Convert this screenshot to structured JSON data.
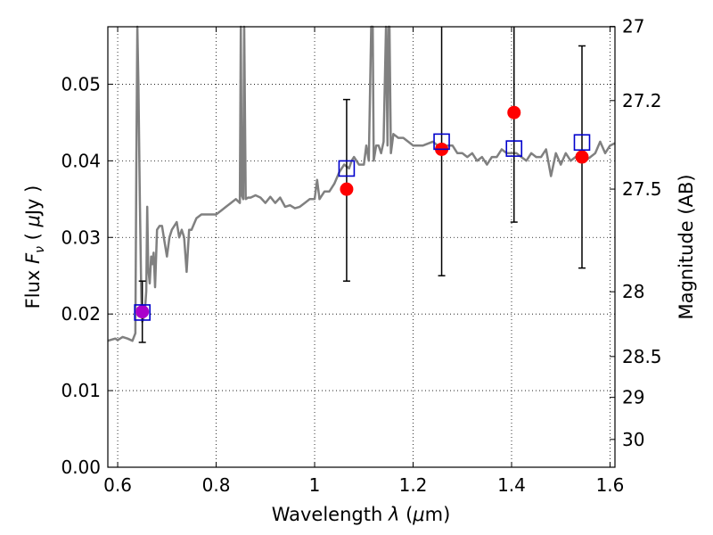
{
  "chart_data": {
    "type": "line",
    "xlabel": "Wavelength  λ (μm)",
    "ylabel": "Flux  F_ν  ( μJy )",
    "ylabel_parts": {
      "pre": "Flux  ",
      "var": "F",
      "sub": "ν",
      "mid": "  ( ",
      "mu": "μ",
      "post": "Jy )"
    },
    "xlabel_parts": {
      "pre": "Wavelength  ",
      "lam": "λ",
      "mid": " (",
      "mu": "μ",
      "post": "m)"
    },
    "y2label": "Magnitude (AB)",
    "xlim": [
      0.58,
      1.61
    ],
    "ylim": [
      0.0,
      0.0575
    ],
    "grid": true,
    "x_ticks": [
      {
        "value": 0.6,
        "label": "0.6"
      },
      {
        "value": 0.8,
        "label": "0.8"
      },
      {
        "value": 1.0,
        "label": "1"
      },
      {
        "value": 1.2,
        "label": "1.2"
      },
      {
        "value": 1.4,
        "label": "1.4"
      },
      {
        "value": 1.6,
        "label": "1.6"
      }
    ],
    "y_ticks": [
      {
        "value": 0.0,
        "label": "0.00"
      },
      {
        "value": 0.01,
        "label": "0.01"
      },
      {
        "value": 0.02,
        "label": "0.02"
      },
      {
        "value": 0.03,
        "label": "0.03"
      },
      {
        "value": 0.04,
        "label": "0.04"
      },
      {
        "value": 0.05,
        "label": "0.05"
      }
    ],
    "mag_ticks": [
      {
        "value": 27,
        "label": "27"
      },
      {
        "value": 27.2,
        "label": "27.2"
      },
      {
        "value": 27.5,
        "label": "27.5"
      },
      {
        "value": 28,
        "label": "28"
      },
      {
        "value": 28.5,
        "label": "28.5"
      },
      {
        "value": 29,
        "label": "29"
      },
      {
        "value": 30,
        "label": "30"
      }
    ],
    "colors": {
      "model": "#808080",
      "observed": "#ff0000",
      "observed_blended": "#aa00cc",
      "synthetic": "#0000cc",
      "errorbar": "#000000",
      "grid": "#000000"
    },
    "model_spectrum": {
      "x": [
        0.58,
        0.595,
        0.6,
        0.61,
        0.62,
        0.63,
        0.636,
        0.638,
        0.64,
        0.642,
        0.645,
        0.648,
        0.65,
        0.655,
        0.658,
        0.66,
        0.662,
        0.665,
        0.668,
        0.67,
        0.673,
        0.676,
        0.68,
        0.685,
        0.69,
        0.695,
        0.7,
        0.705,
        0.71,
        0.72,
        0.725,
        0.73,
        0.735,
        0.74,
        0.745,
        0.75,
        0.76,
        0.77,
        0.78,
        0.79,
        0.8,
        0.81,
        0.82,
        0.83,
        0.84,
        0.848,
        0.85,
        0.852,
        0.855,
        0.857,
        0.86,
        0.865,
        0.87,
        0.88,
        0.89,
        0.9,
        0.91,
        0.92,
        0.93,
        0.94,
        0.95,
        0.96,
        0.97,
        0.98,
        0.99,
        1.0,
        1.005,
        1.01,
        1.02,
        1.03,
        1.04,
        1.05,
        1.06,
        1.07,
        1.075,
        1.08,
        1.09,
        1.1,
        1.105,
        1.11,
        1.115,
        1.118,
        1.12,
        1.125,
        1.13,
        1.135,
        1.14,
        1.145,
        1.148,
        1.15,
        1.152,
        1.155,
        1.16,
        1.17,
        1.18,
        1.19,
        1.2,
        1.22,
        1.24,
        1.25,
        1.26,
        1.27,
        1.28,
        1.29,
        1.3,
        1.31,
        1.32,
        1.33,
        1.34,
        1.35,
        1.36,
        1.37,
        1.38,
        1.39,
        1.4,
        1.41,
        1.42,
        1.43,
        1.44,
        1.45,
        1.46,
        1.47,
        1.48,
        1.49,
        1.5,
        1.51,
        1.52,
        1.53,
        1.54,
        1.55,
        1.56,
        1.57,
        1.58,
        1.59,
        1.6,
        1.61
      ],
      "y": [
        0.0165,
        0.0168,
        0.0166,
        0.017,
        0.0168,
        0.0165,
        0.0175,
        0.04,
        0.058,
        0.05,
        0.035,
        0.022,
        0.019,
        0.02,
        0.023,
        0.034,
        0.026,
        0.024,
        0.0275,
        0.0265,
        0.028,
        0.0235,
        0.031,
        0.0315,
        0.0315,
        0.0295,
        0.0275,
        0.03,
        0.031,
        0.032,
        0.03,
        0.031,
        0.03,
        0.0255,
        0.031,
        0.031,
        0.0325,
        0.033,
        0.033,
        0.033,
        0.033,
        0.0335,
        0.034,
        0.0345,
        0.035,
        0.0345,
        0.058,
        0.0355,
        0.035,
        0.058,
        0.035,
        0.0352,
        0.0352,
        0.0355,
        0.0352,
        0.0345,
        0.0353,
        0.0345,
        0.0352,
        0.034,
        0.0342,
        0.0338,
        0.034,
        0.0345,
        0.035,
        0.035,
        0.0375,
        0.035,
        0.036,
        0.036,
        0.037,
        0.0385,
        0.0395,
        0.039,
        0.04,
        0.0405,
        0.0395,
        0.0395,
        0.042,
        0.04,
        0.058,
        0.058,
        0.04,
        0.042,
        0.042,
        0.041,
        0.0425,
        0.058,
        0.042,
        0.058,
        0.058,
        0.041,
        0.0435,
        0.043,
        0.043,
        0.0425,
        0.042,
        0.042,
        0.0425,
        0.042,
        0.0415,
        0.042,
        0.042,
        0.041,
        0.041,
        0.0405,
        0.041,
        0.04,
        0.0405,
        0.0395,
        0.0405,
        0.0405,
        0.0415,
        0.041,
        0.041,
        0.041,
        0.0405,
        0.04,
        0.041,
        0.0405,
        0.0405,
        0.0415,
        0.038,
        0.041,
        0.0395,
        0.041,
        0.04,
        0.0405,
        0.041,
        0.04,
        0.0405,
        0.041,
        0.0425,
        0.041,
        0.042,
        0.0423
      ]
    },
    "observed_points": [
      {
        "x": 0.65,
        "y": 0.0203,
        "err_low": 0.004,
        "err_high": 0.004,
        "blended": true
      },
      {
        "x": 1.065,
        "y": 0.0363,
        "err_low": 0.012,
        "err_high": 0.0117,
        "blended": false
      },
      {
        "x": 1.258,
        "y": 0.0415,
        "err_low": 0.0165,
        "err_high": 0.0165,
        "blended": false
      },
      {
        "x": 1.405,
        "y": 0.0463,
        "err_low": 0.0143,
        "err_high": 0.0143,
        "blended": false
      },
      {
        "x": 1.543,
        "y": 0.0405,
        "err_low": 0.0145,
        "err_high": 0.0145,
        "blended": false
      }
    ],
    "synthetic_points": [
      {
        "x": 0.65,
        "y": 0.0202
      },
      {
        "x": 1.065,
        "y": 0.039
      },
      {
        "x": 1.258,
        "y": 0.0425
      },
      {
        "x": 1.405,
        "y": 0.0416
      },
      {
        "x": 1.543,
        "y": 0.0424
      }
    ]
  }
}
